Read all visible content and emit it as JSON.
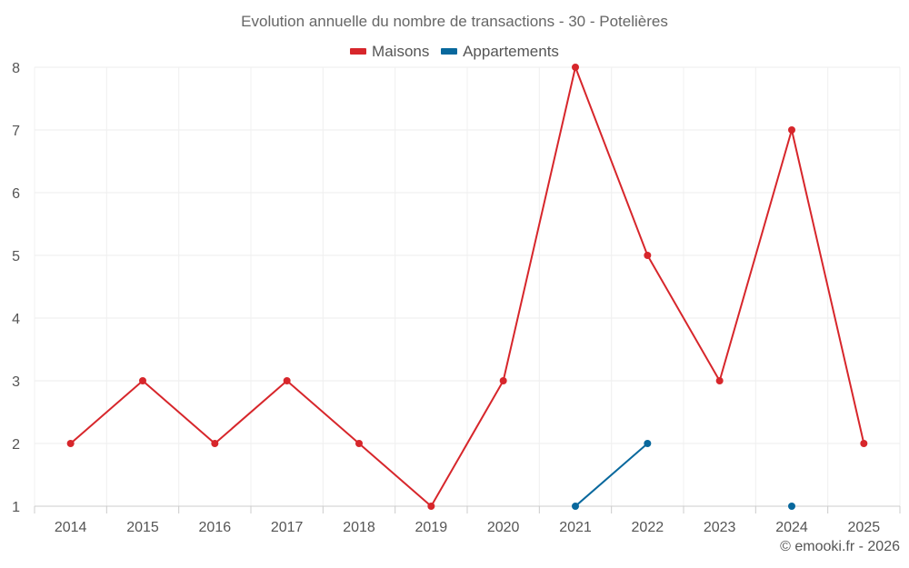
{
  "chart_data": {
    "type": "line",
    "title": "Evolution annuelle du nombre de transactions - 30 - Potelières",
    "categories": [
      "2014",
      "2015",
      "2016",
      "2017",
      "2018",
      "2019",
      "2020",
      "2021",
      "2022",
      "2023",
      "2024",
      "2025"
    ],
    "series": [
      {
        "name": "Maisons",
        "color": "#d7262b",
        "values": [
          2,
          3,
          2,
          3,
          2,
          1,
          3,
          8,
          5,
          3,
          7,
          2
        ]
      },
      {
        "name": "Appartements",
        "color": "#08689d",
        "values": [
          null,
          null,
          null,
          null,
          null,
          null,
          null,
          1,
          2,
          null,
          1,
          null
        ]
      }
    ],
    "ylim": [
      1,
      8
    ],
    "yticks": [
      1,
      2,
      3,
      4,
      5,
      6,
      7,
      8
    ],
    "grid": true,
    "legend_position": "top-center"
  },
  "credit": "© emooki.fr - 2026"
}
